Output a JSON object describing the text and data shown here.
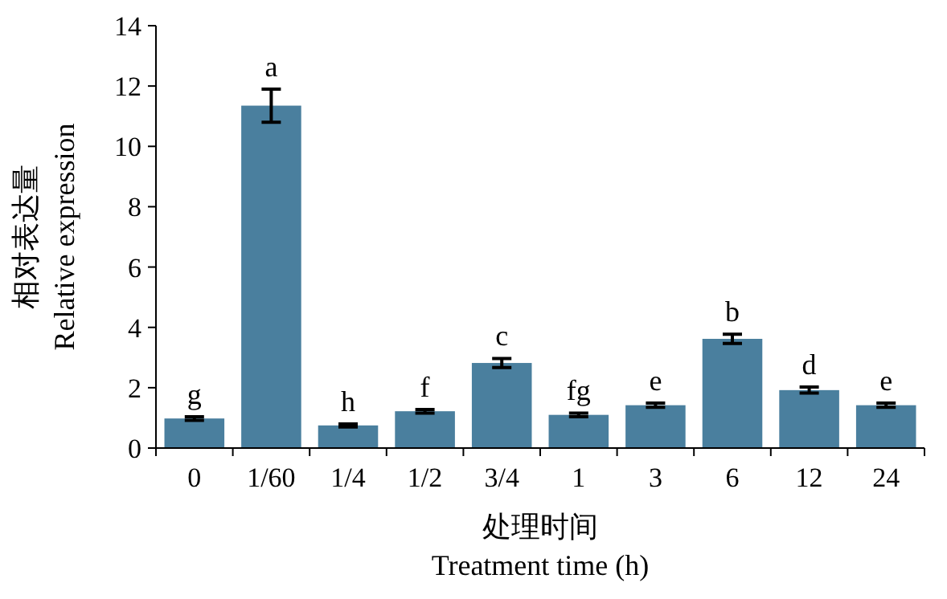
{
  "chart_data": {
    "type": "bar",
    "xlabel": "处理时间\nTreatment time (h)",
    "ylabel": "相对表达量\nRelative expression",
    "categories": [
      "0",
      "1/60",
      "1/4",
      "1/2",
      "3/4",
      "1",
      "3",
      "6",
      "12",
      "24"
    ],
    "values": [
      0.98,
      11.35,
      0.75,
      1.22,
      2.82,
      1.1,
      1.42,
      3.62,
      1.92,
      1.42
    ],
    "errors": [
      0.06,
      0.55,
      0.05,
      0.06,
      0.15,
      0.06,
      0.07,
      0.15,
      0.1,
      0.07
    ],
    "color": "#4a7f9e",
    "ylim": [
      0,
      14
    ],
    "yticks": [
      0,
      2,
      4,
      6,
      8,
      10,
      12,
      14
    ],
    "annotations": [
      {
        "text": "g",
        "x": "0",
        "y": 1.04
      },
      {
        "text": "a",
        "x": "1/60",
        "y": 11.9
      },
      {
        "text": "h",
        "x": "1/4",
        "y": 0.8
      },
      {
        "text": "f",
        "x": "1/2",
        "y": 1.28
      },
      {
        "text": "c",
        "x": "3/4",
        "y": 2.97
      },
      {
        "text": "fg",
        "x": "1",
        "y": 1.16
      },
      {
        "text": "e",
        "x": "3",
        "y": 1.49
      },
      {
        "text": "b",
        "x": "6",
        "y": 3.77
      },
      {
        "text": "d",
        "x": "12",
        "y": 2.02
      },
      {
        "text": "e",
        "x": "24",
        "y": 1.49
      }
    ]
  }
}
